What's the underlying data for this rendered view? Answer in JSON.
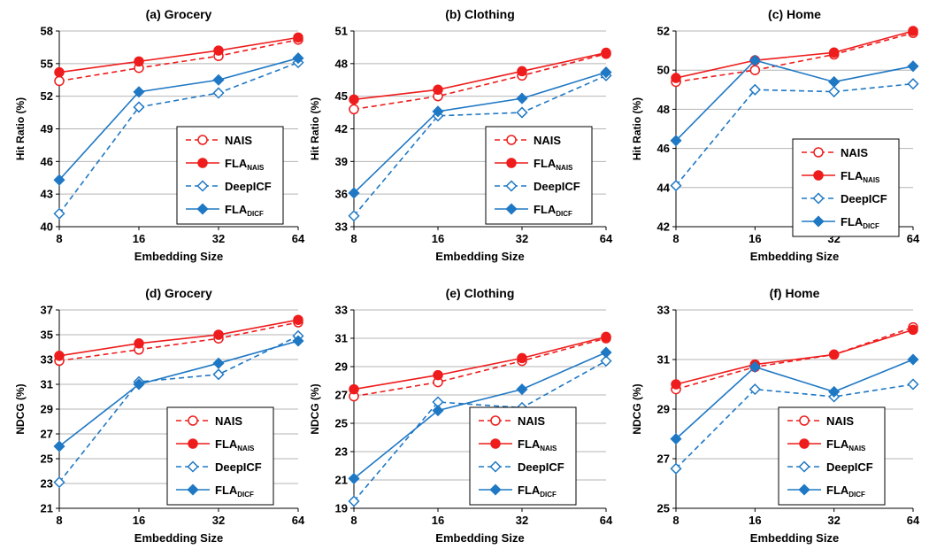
{
  "legend": {
    "series": [
      {
        "base": "NAIS",
        "sub": "",
        "color": "#ee1c1c",
        "dashed": true,
        "marker": "circle",
        "filled": false
      },
      {
        "base": "FLA",
        "sub": "NAIS",
        "color": "#ee1c1c",
        "dashed": false,
        "marker": "circle",
        "filled": true
      },
      {
        "base": "DeepICF",
        "sub": "",
        "color": "#1f78c4",
        "dashed": true,
        "marker": "diamond",
        "filled": false
      },
      {
        "base": "FLA",
        "sub": "DICF",
        "color": "#1f78c4",
        "dashed": false,
        "marker": "diamond",
        "filled": true
      }
    ]
  },
  "chart_data": [
    {
      "type": "line",
      "title": "(a) Grocery",
      "xlabel": "Embedding Size",
      "ylabel": "Hit Ratio (%)",
      "categories": [
        "8",
        "16",
        "32",
        "64"
      ],
      "ylim": [
        40,
        58
      ],
      "yticks": [
        "40",
        "43",
        "46",
        "49",
        "52",
        "55",
        "58"
      ],
      "grid": true,
      "series": [
        {
          "name": "NAIS",
          "values": [
            53.4,
            54.6,
            55.7,
            57.2
          ]
        },
        {
          "name": "FLA_NAIS",
          "values": [
            54.2,
            55.2,
            56.2,
            57.4
          ]
        },
        {
          "name": "DeepICF",
          "values": [
            41.2,
            51.0,
            52.3,
            55.1
          ]
        },
        {
          "name": "FLA_DICF",
          "values": [
            44.3,
            52.4,
            53.5,
            55.5
          ]
        }
      ]
    },
    {
      "type": "line",
      "title": "(b) Clothing",
      "xlabel": "Embedding Size",
      "ylabel": "Hit Ratio (%)",
      "categories": [
        "8",
        "16",
        "32",
        "64"
      ],
      "ylim": [
        33,
        51
      ],
      "yticks": [
        "33",
        "36",
        "39",
        "42",
        "45",
        "48",
        "51"
      ],
      "grid": true,
      "series": [
        {
          "name": "NAIS",
          "values": [
            43.8,
            45.0,
            46.9,
            48.9
          ]
        },
        {
          "name": "FLA_NAIS",
          "values": [
            44.7,
            45.6,
            47.3,
            49.0
          ]
        },
        {
          "name": "DeepICF",
          "values": [
            34.0,
            43.2,
            43.5,
            46.9
          ]
        },
        {
          "name": "FLA_DICF",
          "values": [
            36.1,
            43.6,
            44.8,
            47.2
          ]
        }
      ]
    },
    {
      "type": "line",
      "title": "(c) Home",
      "xlabel": "Embedding Size",
      "ylabel": "Hit Ratio (%)",
      "categories": [
        "8",
        "16",
        "32",
        "64"
      ],
      "ylim": [
        42,
        52
      ],
      "yticks": [
        "42",
        "44",
        "46",
        "48",
        "50",
        "52"
      ],
      "grid": true,
      "series": [
        {
          "name": "NAIS",
          "values": [
            49.4,
            50.0,
            50.8,
            51.9
          ]
        },
        {
          "name": "FLA_NAIS",
          "values": [
            49.6,
            50.5,
            50.9,
            52.0
          ]
        },
        {
          "name": "DeepICF",
          "values": [
            44.1,
            49.0,
            48.9,
            49.3
          ]
        },
        {
          "name": "FLA_DICF",
          "values": [
            46.4,
            50.5,
            49.4,
            50.2
          ]
        }
      ]
    },
    {
      "type": "line",
      "title": "(d) Grocery",
      "xlabel": "Embedding Size",
      "ylabel": "NDCG (%)",
      "categories": [
        "8",
        "16",
        "32",
        "64"
      ],
      "ylim": [
        21,
        37
      ],
      "yticks": [
        "21",
        "23",
        "25",
        "27",
        "29",
        "31",
        "33",
        "35",
        "37"
      ],
      "grid": true,
      "series": [
        {
          "name": "NAIS",
          "values": [
            32.9,
            33.8,
            34.7,
            36.0
          ]
        },
        {
          "name": "FLA_NAIS",
          "values": [
            33.3,
            34.3,
            35.0,
            36.2
          ]
        },
        {
          "name": "DeepICF",
          "values": [
            23.1,
            31.2,
            31.8,
            34.9
          ]
        },
        {
          "name": "FLA_DICF",
          "values": [
            26.0,
            31.0,
            32.7,
            34.5
          ]
        }
      ]
    },
    {
      "type": "line",
      "title": "(e) Clothing",
      "xlabel": "Embedding Size",
      "ylabel": "NDCG (%)",
      "categories": [
        "8",
        "16",
        "32",
        "64"
      ],
      "ylim": [
        19,
        33
      ],
      "yticks": [
        "19",
        "21",
        "23",
        "25",
        "27",
        "29",
        "31",
        "33"
      ],
      "grid": true,
      "series": [
        {
          "name": "NAIS",
          "values": [
            26.9,
            27.9,
            29.4,
            31.0
          ]
        },
        {
          "name": "FLA_NAIS",
          "values": [
            27.4,
            28.4,
            29.6,
            31.1
          ]
        },
        {
          "name": "DeepICF",
          "values": [
            19.5,
            26.5,
            26.1,
            29.4
          ]
        },
        {
          "name": "FLA_DICF",
          "values": [
            21.1,
            25.9,
            27.4,
            30.0
          ]
        }
      ]
    },
    {
      "type": "line",
      "title": "(f) Home",
      "xlabel": "Embedding Size",
      "ylabel": "NDCG (%)",
      "categories": [
        "8",
        "16",
        "32",
        "64"
      ],
      "ylim": [
        25,
        33
      ],
      "yticks": [
        "25",
        "27",
        "29",
        "31",
        "33"
      ],
      "grid": true,
      "series": [
        {
          "name": "NAIS",
          "values": [
            29.8,
            30.7,
            31.2,
            32.3
          ]
        },
        {
          "name": "FLA_NAIS",
          "values": [
            30.0,
            30.8,
            31.2,
            32.2
          ]
        },
        {
          "name": "DeepICF",
          "values": [
            26.6,
            29.8,
            29.5,
            30.0
          ]
        },
        {
          "name": "FLA_DICF",
          "values": [
            27.8,
            30.7,
            29.7,
            31.0
          ]
        }
      ]
    }
  ]
}
